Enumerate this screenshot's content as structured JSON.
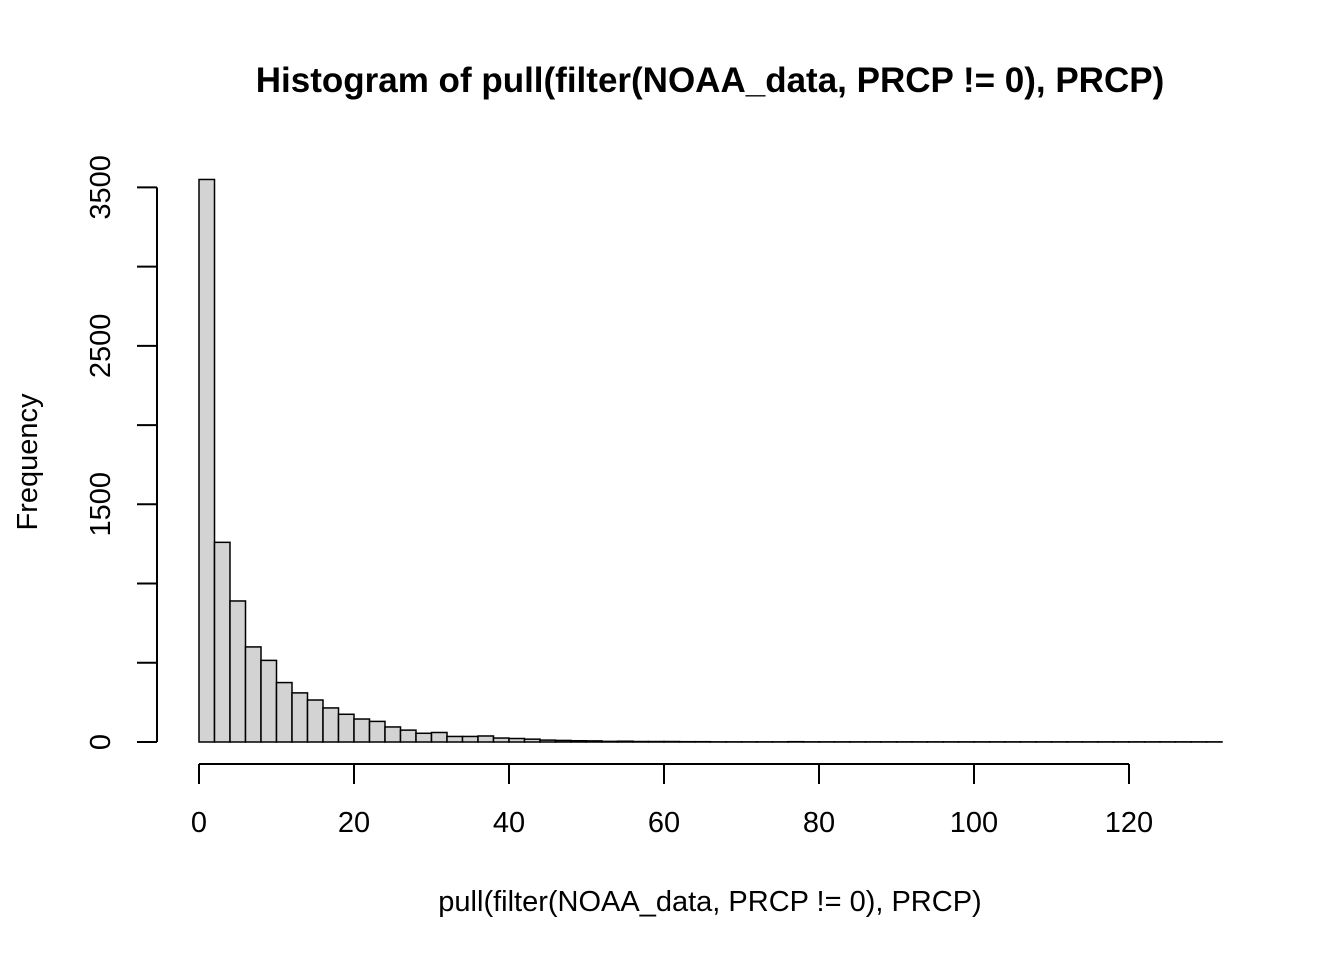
{
  "chart_data": {
    "type": "bar",
    "title": "Histogram of pull(filter(NOAA_data, PRCP != 0), PRCP)",
    "xlabel": "pull(filter(NOAA_data, PRCP != 0), PRCP)",
    "ylabel": "Frequency",
    "bin_width": 2,
    "xlim": [
      0,
      132
    ],
    "ylim": [
      0,
      3500
    ],
    "x_ticks": [
      0,
      20,
      40,
      60,
      80,
      100,
      120
    ],
    "y_ticks": [
      0,
      500,
      1000,
      1500,
      2000,
      2500,
      3000,
      3500
    ],
    "y_tick_labels": [
      "0",
      "",
      "",
      "1500",
      "",
      "2500",
      "",
      "3500"
    ],
    "bin_starts": [
      0,
      2,
      4,
      6,
      8,
      10,
      12,
      14,
      16,
      18,
      20,
      22,
      24,
      26,
      28,
      30,
      32,
      34,
      36,
      38,
      40,
      42,
      44,
      46,
      48,
      50,
      52,
      54,
      56,
      58,
      60,
      62,
      64,
      66,
      68,
      70,
      72,
      74,
      76,
      78,
      80,
      82,
      84,
      86,
      88,
      90,
      92,
      94,
      96,
      98,
      100,
      102,
      104,
      106,
      108,
      110,
      112,
      114,
      116,
      118,
      120,
      122,
      124,
      126,
      128,
      130
    ],
    "values": [
      3550,
      1260,
      890,
      600,
      515,
      375,
      310,
      265,
      215,
      175,
      145,
      130,
      95,
      75,
      55,
      60,
      35,
      35,
      38,
      25,
      22,
      18,
      12,
      10,
      8,
      7,
      4,
      5,
      3,
      3,
      3,
      2,
      2,
      1,
      1,
      1,
      1,
      1,
      2,
      1,
      1,
      1,
      1,
      1,
      1,
      1,
      1,
      1,
      1,
      1,
      1,
      1,
      1,
      1,
      1,
      1,
      1,
      1,
      1,
      1,
      1,
      1,
      1,
      1,
      1,
      1
    ],
    "bar_fill": "#d3d3d3",
    "bar_stroke": "#000000",
    "grid": false,
    "legend": "none"
  }
}
